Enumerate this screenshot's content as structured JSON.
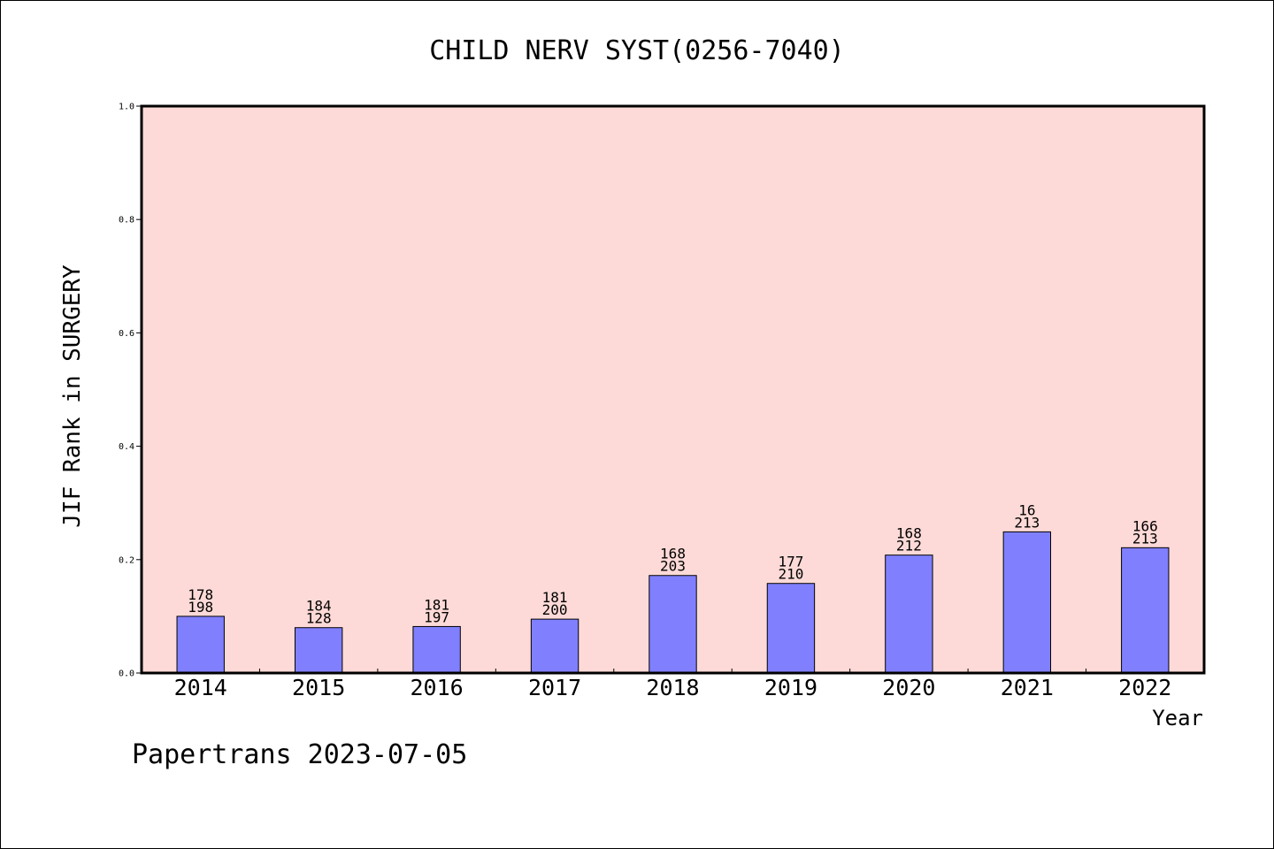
{
  "chart_data": {
    "type": "bar",
    "title": "CHILD NERV SYST(0256-7040)",
    "xlabel": "Year",
    "ylabel": "JIF Rank in SURGERY",
    "ylim": [
      0,
      1.0
    ],
    "yticks": [
      "0.0",
      "0.2",
      "0.4",
      "0.6",
      "0.8",
      "1.0"
    ],
    "categories": [
      "2014",
      "2015",
      "2016",
      "2017",
      "2018",
      "2019",
      "2020",
      "2021",
      "2022"
    ],
    "values": [
      0.1,
      0.08,
      0.082,
      0.095,
      0.172,
      0.158,
      0.208,
      0.249,
      0.221
    ],
    "annotations": [
      {
        "rank": "178",
        "total": "198"
      },
      {
        "rank": "184",
        "total": "128"
      },
      {
        "rank": "181",
        "total": "197"
      },
      {
        "rank": "181",
        "total": "200"
      },
      {
        "rank": "168",
        "total": "203"
      },
      {
        "rank": "177",
        "total": "210"
      },
      {
        "rank": "168",
        "total": "212"
      },
      {
        "rank": "16",
        "total": "213"
      },
      {
        "rank": "166",
        "total": "213"
      }
    ],
    "grid": false,
    "colors": {
      "plot_background": "#fddad7",
      "bar_fill": "#8080ff",
      "bar_stroke": "#000000"
    }
  },
  "footer": "Papertrans 2023-07-05"
}
